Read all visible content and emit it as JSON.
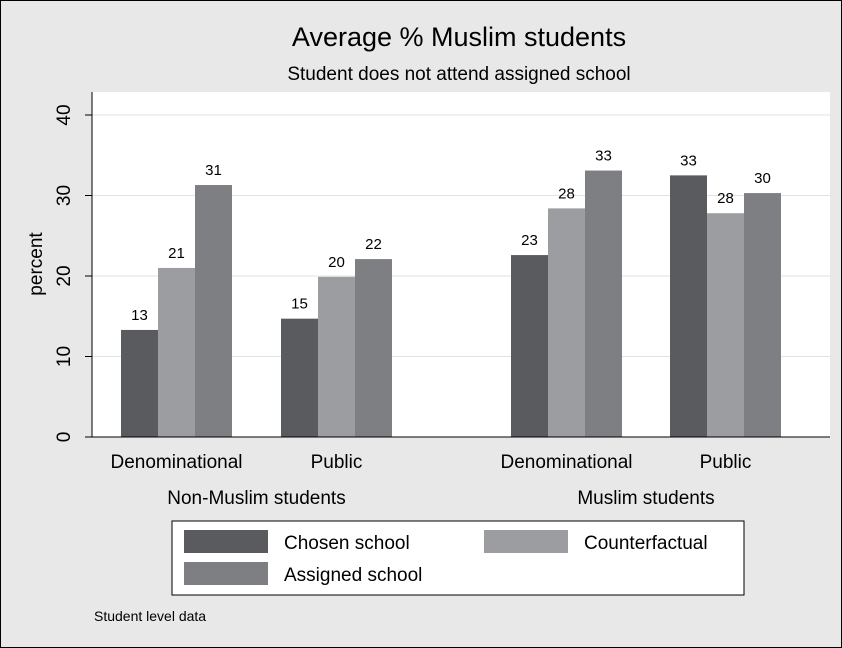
{
  "chart_data": {
    "type": "bar",
    "title": "Average % Muslim students",
    "subtitle": "Student does not attend assigned school",
    "ylabel": "percent",
    "ylim": [
      0,
      40
    ],
    "yticks": [
      0,
      10,
      20,
      30,
      40
    ],
    "grid": true,
    "groups": [
      {
        "label": "Non-Muslim students",
        "categories": [
          {
            "label": "Denominational",
            "values": [
              13.3,
              21.0,
              31.3
            ],
            "value_labels": [
              "13",
              "21",
              "31"
            ]
          },
          {
            "label": "Public",
            "values": [
              14.7,
              19.9,
              22.1
            ],
            "value_labels": [
              "15",
              "20",
              "22"
            ]
          }
        ]
      },
      {
        "label": "Muslim students",
        "categories": [
          {
            "label": "Denominational",
            "values": [
              22.6,
              28.4,
              33.1
            ],
            "value_labels": [
              "23",
              "28",
              "33"
            ]
          },
          {
            "label": "Public",
            "values": [
              32.5,
              27.8,
              30.3
            ],
            "value_labels": [
              "33",
              "28",
              "30"
            ]
          }
        ]
      }
    ],
    "series": [
      {
        "name": "Chosen school",
        "color": "#5a5b5f"
      },
      {
        "name": "Counterfactual",
        "color": "#9c9da1"
      },
      {
        "name": "Assigned school",
        "color": "#7e7f83"
      }
    ],
    "legend_position": "bottom",
    "note": "Student level data",
    "colors": {
      "outer_bg": "#e8e8e8",
      "plot_bg": "#ffffff",
      "grid": "#e2e2e2",
      "border": "#000000"
    }
  }
}
